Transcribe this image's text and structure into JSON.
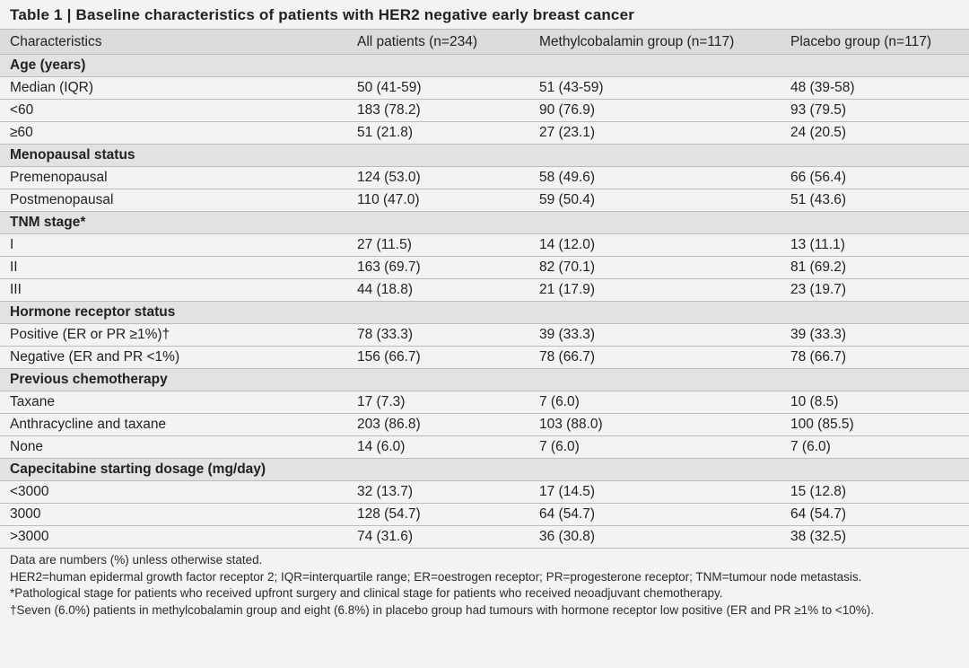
{
  "title": "Table 1 | Baseline characteristics of patients with HER2 negative early breast cancer",
  "columns": [
    "Characteristics",
    "All patients (n=234)",
    "Methylcobalamin group (n=117)",
    "Placebo group (n=117)"
  ],
  "sections": [
    {
      "heading": "Age (years)",
      "rows": [
        [
          "Median (IQR)",
          "50 (41-59)",
          "51 (43-59)",
          "48 (39-58)"
        ],
        [
          "<60",
          "183 (78.2)",
          "90 (76.9)",
          "93 (79.5)"
        ],
        [
          "≥60",
          "51 (21.8)",
          "27 (23.1)",
          "24 (20.5)"
        ]
      ]
    },
    {
      "heading": "Menopausal status",
      "rows": [
        [
          "Premenopausal",
          "124 (53.0)",
          "58 (49.6)",
          "66 (56.4)"
        ],
        [
          "Postmenopausal",
          "110 (47.0)",
          "59 (50.4)",
          "51 (43.6)"
        ]
      ]
    },
    {
      "heading": "TNM stage*",
      "rows": [
        [
          "I",
          "27 (11.5)",
          "14 (12.0)",
          "13 (11.1)"
        ],
        [
          "II",
          "163 (69.7)",
          "82 (70.1)",
          "81 (69.2)"
        ],
        [
          "III",
          "44 (18.8)",
          "21 (17.9)",
          "23 (19.7)"
        ]
      ]
    },
    {
      "heading": "Hormone receptor status",
      "rows": [
        [
          "Positive (ER or PR ≥1%)†",
          "78 (33.3)",
          "39 (33.3)",
          "39 (33.3)"
        ],
        [
          "Negative (ER and PR <1%)",
          "156 (66.7)",
          "78 (66.7)",
          "78 (66.7)"
        ]
      ]
    },
    {
      "heading": "Previous chemotherapy",
      "rows": [
        [
          "Taxane",
          "17 (7.3)",
          "7 (6.0)",
          "10 (8.5)"
        ],
        [
          "Anthracycline and taxane",
          "203 (86.8)",
          "103 (88.0)",
          "100 (85.5)"
        ],
        [
          "None",
          "14 (6.0)",
          "7 (6.0)",
          "7 (6.0)"
        ]
      ]
    },
    {
      "heading": "Capecitabine starting dosage (mg/day)",
      "rows": [
        [
          "<3000",
          "32 (13.7)",
          "17 (14.5)",
          "15 (12.8)"
        ],
        [
          "3000",
          "128 (54.7)",
          "64 (54.7)",
          "64 (54.7)"
        ],
        [
          ">3000",
          "74 (31.6)",
          "36 (30.8)",
          "38 (32.5)"
        ]
      ]
    }
  ],
  "footnotes": [
    "Data are numbers (%) unless otherwise stated.",
    "HER2=human epidermal growth factor receptor 2; IQR=interquartile range; ER=oestrogen receptor; PR=progesterone receptor; TNM=tumour node metastasis.",
    "*Pathological stage for patients who received upfront surgery and clinical stage for patients who received neoadjuvant chemotherapy.",
    "†Seven (6.0%) patients in methylcobalamin group and eight (6.8%) in placebo group had tumours with hormone receptor low positive (ER and PR ≥1% to <10%)."
  ]
}
